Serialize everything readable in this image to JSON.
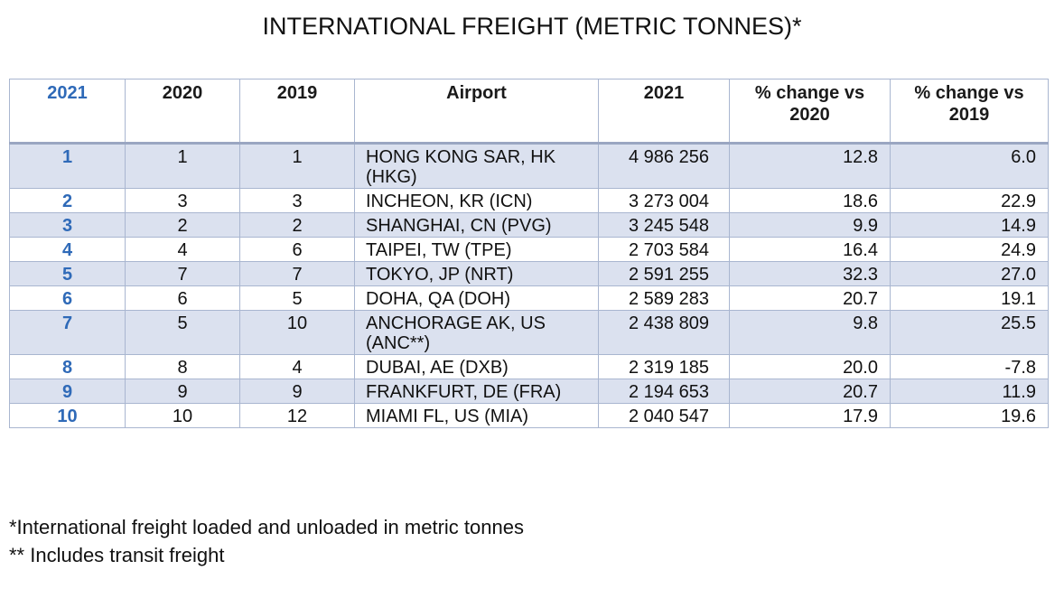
{
  "title": "INTERNATIONAL FREIGHT (METRIC TONNES)*",
  "table": {
    "headers": [
      "2021",
      "2020",
      "2019",
      "Airport",
      "2021",
      "% change vs 2020",
      "% change vs 2019"
    ],
    "header_lines": {
      "pct2020": [
        "% change vs",
        "2020"
      ],
      "pct2019": [
        "% change vs",
        "2019"
      ]
    },
    "rows": [
      {
        "rank2021": "1",
        "rank2020": "1",
        "rank2019": "1",
        "airport": "HONG KONG SAR, HK (HKG)",
        "freight": "4 986 256",
        "pct2020": "12.8",
        "pct2019": "6.0"
      },
      {
        "rank2021": "2",
        "rank2020": "3",
        "rank2019": "3",
        "airport": "INCHEON, KR (ICN)",
        "freight": "3 273 004",
        "pct2020": "18.6",
        "pct2019": "22.9"
      },
      {
        "rank2021": "3",
        "rank2020": "2",
        "rank2019": "2",
        "airport": "SHANGHAI, CN (PVG)",
        "freight": "3 245 548",
        "pct2020": "9.9",
        "pct2019": "14.9"
      },
      {
        "rank2021": "4",
        "rank2020": "4",
        "rank2019": "6",
        "airport": "TAIPEI, TW (TPE)",
        "freight": "2 703 584",
        "pct2020": "16.4",
        "pct2019": "24.9"
      },
      {
        "rank2021": "5",
        "rank2020": "7",
        "rank2019": "7",
        "airport": "TOKYO, JP (NRT)",
        "freight": "2 591 255",
        "pct2020": "32.3",
        "pct2019": "27.0"
      },
      {
        "rank2021": "6",
        "rank2020": "6",
        "rank2019": "5",
        "airport": "DOHA, QA (DOH)",
        "freight": "2 589 283",
        "pct2020": "20.7",
        "pct2019": "19.1"
      },
      {
        "rank2021": "7",
        "rank2020": "5",
        "rank2019": "10",
        "airport": "ANCHORAGE AK, US (ANC**)",
        "freight": "2 438 809",
        "pct2020": "9.8",
        "pct2019": "25.5"
      },
      {
        "rank2021": "8",
        "rank2020": "8",
        "rank2019": "4",
        "airport": "DUBAI, AE (DXB)",
        "freight": "2 319 185",
        "pct2020": "20.0",
        "pct2019": "-7.8"
      },
      {
        "rank2021": "9",
        "rank2020": "9",
        "rank2019": "9",
        "airport": "FRANKFURT, DE (FRA)",
        "freight": "2 194 653",
        "pct2020": "20.7",
        "pct2019": "11.9"
      },
      {
        "rank2021": "10",
        "rank2020": "10",
        "rank2019": "12",
        "airport": "MIAMI FL, US (MIA)",
        "freight": "2 040 547",
        "pct2020": "17.9",
        "pct2019": "19.6"
      }
    ]
  },
  "footnotes": [
    "*International freight loaded and unloaded in metric tonnes",
    "** Includes transit freight"
  ],
  "colors": {
    "rank_blue": "#2f6ab8",
    "row_shade": "#dbe1ef",
    "border": "#a9b6d0"
  }
}
